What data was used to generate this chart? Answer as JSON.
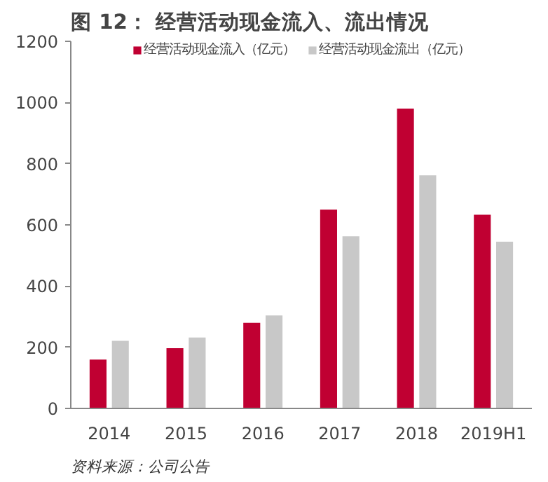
{
  "chart_data": {
    "type": "bar",
    "title": "图 12：  经营活动现金流入、流出情况",
    "categories": [
      "2014",
      "2015",
      "2016",
      "2017",
      "2018",
      "2019H1"
    ],
    "series": [
      {
        "name": "经营活动现金流入（亿元）",
        "color": "#c00032",
        "values": [
          160,
          197,
          280,
          650,
          980,
          633
        ]
      },
      {
        "name": "经营活动现金流出（亿元）",
        "color": "#c8c8c8",
        "values": [
          221,
          232,
          304,
          563,
          762,
          545
        ]
      }
    ],
    "ylim": [
      0,
      1200
    ],
    "yticks": [
      0,
      200,
      400,
      600,
      800,
      1000,
      1200
    ],
    "legend": "top",
    "annotations": [
      "资料来源：公司公告"
    ]
  }
}
